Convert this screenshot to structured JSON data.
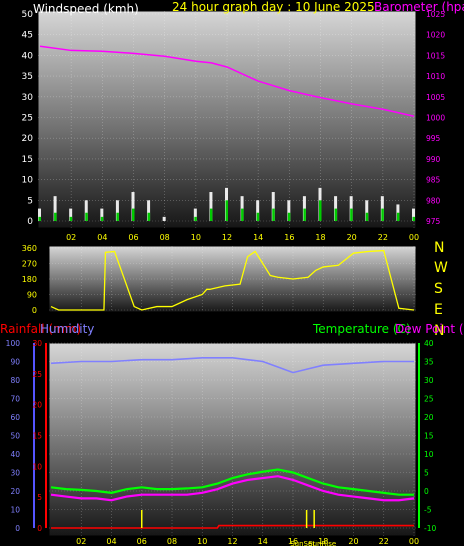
{
  "header": {
    "wind_title": "Windspeed (kmh)",
    "graph_title": "24 hour graph day : 10 June 2025",
    "baro_title": "Barometer (hpa)"
  },
  "compass": [
    "N",
    "W",
    "S",
    "E",
    "N"
  ],
  "lower_titles": {
    "rain": "Rainfall (mm)",
    "hum": "Humidity",
    "temp": "Temperature (C)",
    "dew": "Dew Point (C)"
  },
  "sun_labels": {
    "sunset": "SunSet",
    "sunrise": "SunRise"
  },
  "colors": {
    "wind": "#ffffff",
    "gust": "#00cc00",
    "baro": "#ff00ff",
    "dir": "#ffff00",
    "hum": "#8080ff",
    "temp": "#00ff00",
    "dew": "#ff00ff",
    "rain": "#ff0000",
    "sun": "#ffff00"
  },
  "chart_data": [
    {
      "type": "line",
      "title": "24 hour graph day : 10 June 2025",
      "x_ticks": [
        "02",
        "04",
        "06",
        "08",
        "10",
        "12",
        "14",
        "16",
        "18",
        "20",
        "22",
        "00"
      ],
      "wind_axis": {
        "label": "Windspeed (kmh)",
        "ticks": [
          0,
          5,
          10,
          15,
          20,
          25,
          30,
          35,
          40,
          45,
          50
        ],
        "range": [
          0,
          50
        ]
      },
      "baro_axis": {
        "label": "Barometer (hpa)",
        "ticks": [
          975,
          980,
          985,
          990,
          995,
          1000,
          1005,
          1010,
          1015,
          1020,
          1025
        ],
        "range": [
          975,
          1025
        ]
      },
      "series": [
        {
          "name": "Barometer (hpa)",
          "axis": "baro",
          "x": [
            0,
            2,
            4,
            6,
            8,
            10,
            11,
            12,
            14,
            16,
            18,
            20,
            22,
            24
          ],
          "y": [
            1017.2,
            1016.2,
            1016.0,
            1015.5,
            1014.8,
            1013.6,
            1013.2,
            1012.2,
            1008.8,
            1006.5,
            1004.8,
            1003.3,
            1002.0,
            1000.3
          ]
        },
        {
          "name": "Windspeed (kmh)",
          "axis": "wind",
          "x": [
            0,
            1,
            2,
            3,
            4,
            5,
            6,
            7,
            8,
            9,
            10,
            11,
            12,
            13,
            14,
            15,
            16,
            17,
            18,
            19,
            20,
            21,
            22,
            23,
            24
          ],
          "y": [
            1,
            2,
            1,
            2,
            1,
            2,
            3,
            2,
            0,
            0,
            1,
            3,
            5,
            3,
            2,
            3,
            2,
            3,
            5,
            3,
            3,
            2,
            3,
            2,
            1
          ]
        },
        {
          "name": "Gust",
          "axis": "wind",
          "x": [
            0,
            1,
            2,
            3,
            4,
            5,
            6,
            7,
            8,
            9,
            10,
            11,
            12,
            13,
            14,
            15,
            16,
            17,
            18,
            19,
            20,
            21,
            22,
            23,
            24
          ],
          "y": [
            3,
            6,
            3,
            5,
            3,
            5,
            7,
            5,
            1,
            0,
            3,
            7,
            8,
            6,
            5,
            7,
            5,
            6,
            8,
            6,
            6,
            5,
            6,
            4,
            3
          ]
        }
      ]
    },
    {
      "type": "line",
      "y_ticks": [
        0,
        90,
        180,
        270,
        360
      ],
      "range": [
        0,
        360
      ],
      "x_ticks": [
        "02",
        "04",
        "06",
        "08",
        "10",
        "12",
        "14",
        "16",
        "18",
        "20",
        "22",
        "00"
      ],
      "series": [
        {
          "name": "Wind direction",
          "x": [
            0,
            0.5,
            1,
            1.5,
            2,
            3,
            3.5,
            3.6,
            4.2,
            5.5,
            6,
            7,
            8,
            8.5,
            9,
            10,
            10.3,
            10.5,
            11.5,
            12.5,
            13,
            13.5,
            14,
            14.5,
            15,
            16,
            17,
            17.5,
            18,
            19,
            20,
            21,
            22,
            23,
            24
          ],
          "y": [
            20,
            0,
            0,
            0,
            0,
            0,
            0,
            335,
            340,
            20,
            0,
            20,
            20,
            40,
            60,
            90,
            120,
            120,
            140,
            150,
            310,
            340,
            270,
            200,
            190,
            180,
            190,
            230,
            250,
            260,
            330,
            340,
            345,
            10,
            0
          ]
        }
      ]
    },
    {
      "type": "line",
      "x_ticks": [
        "02",
        "04",
        "06",
        "08",
        "10",
        "12",
        "14",
        "16",
        "18",
        "20",
        "22",
        "00"
      ],
      "rain_axis": {
        "label": "Rainfall (mm)",
        "ticks": [
          0,
          5,
          10,
          15,
          20,
          25,
          30
        ],
        "range": [
          0,
          30
        ]
      },
      "hum_axis": {
        "label": "Humidity",
        "ticks": [
          0,
          10,
          20,
          30,
          40,
          50,
          60,
          70,
          80,
          90,
          100
        ],
        "range": [
          0,
          100
        ]
      },
      "temp_axis": {
        "label": "Temperature (C)",
        "ticks": [
          -10,
          -5,
          0,
          5,
          10,
          15,
          20,
          25,
          30,
          35,
          40
        ],
        "range": [
          -10,
          40
        ]
      },
      "series": [
        {
          "name": "Humidity",
          "axis": "hum",
          "x": [
            0,
            2,
            4,
            6,
            8,
            10,
            12,
            13,
            14,
            15,
            16,
            17,
            18,
            20,
            22,
            24
          ],
          "y": [
            89,
            90,
            90,
            91,
            91,
            92,
            92,
            91,
            90,
            87,
            84,
            86,
            88,
            89,
            90,
            90
          ]
        },
        {
          "name": "Temperature (C)",
          "axis": "temp",
          "x": [
            0,
            1,
            2,
            3,
            4,
            5,
            6,
            7,
            8,
            9,
            10,
            11,
            12,
            13,
            14,
            15,
            16,
            17,
            18,
            19,
            20,
            21,
            22,
            23,
            24
          ],
          "y": [
            1.0,
            0.5,
            0.3,
            0.0,
            -0.5,
            0.5,
            1.0,
            0.5,
            0.5,
            0.7,
            1.0,
            2.0,
            3.5,
            4.5,
            5.2,
            5.8,
            5.0,
            3.5,
            2.0,
            1.0,
            0.5,
            0.0,
            -0.5,
            -1.0,
            -1.0
          ]
        },
        {
          "name": "Dew Point (C)",
          "axis": "temp",
          "x": [
            0,
            1,
            2,
            3,
            4,
            5,
            6,
            7,
            8,
            9,
            10,
            11,
            12,
            13,
            14,
            15,
            16,
            17,
            18,
            19,
            20,
            21,
            22,
            23,
            24
          ],
          "y": [
            -1.0,
            -1.5,
            -2.0,
            -2.0,
            -2.5,
            -1.5,
            -1.0,
            -1.0,
            -1.0,
            -1.0,
            -0.5,
            0.5,
            2.0,
            3.0,
            3.5,
            4.0,
            3.0,
            1.5,
            0.0,
            -1.0,
            -1.5,
            -2.0,
            -2.5,
            -2.5,
            -2.0
          ]
        },
        {
          "name": "Rainfall (mm)",
          "axis": "rain",
          "x": [
            0,
            11,
            11.1,
            24
          ],
          "y": [
            0,
            0,
            0.4,
            0.4
          ]
        }
      ],
      "markers": [
        {
          "name": "SunSet",
          "x": 16.9
        },
        {
          "name": "SunRise",
          "x": 17.4
        }
      ]
    }
  ]
}
